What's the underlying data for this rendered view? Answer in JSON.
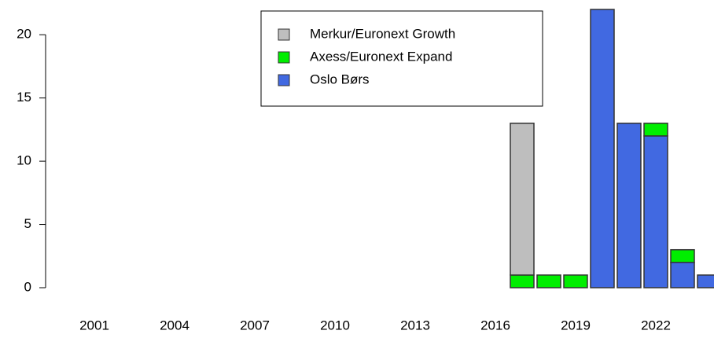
{
  "chart_data": {
    "type": "stacked-bar",
    "categories": [
      "2001",
      null,
      null,
      "2004",
      null,
      null,
      "2007",
      null,
      null,
      "2010",
      null,
      null,
      "2013",
      null,
      null,
      "2016",
      null,
      null,
      "2019",
      null,
      null,
      "2022",
      null,
      null
    ],
    "series": [
      {
        "name": "Merkur/Euronext Growth",
        "color": "#bebebe",
        "values": [
          0,
          0,
          0,
          0,
          0,
          0,
          0,
          0,
          0,
          0,
          0,
          0,
          0,
          0,
          0,
          0,
          12,
          0,
          0,
          0,
          0,
          0,
          0,
          0
        ]
      },
      {
        "name": "Axess/Euronext Expand",
        "color": "#00ee00",
        "values": [
          0,
          0,
          0,
          0,
          0,
          0,
          0,
          0,
          0,
          0,
          0,
          0,
          0,
          0,
          0,
          0,
          1,
          1,
          1,
          0,
          0,
          1,
          1,
          0
        ]
      },
      {
        "name": "Oslo Børs",
        "color": "#4169e1",
        "values": [
          0,
          0,
          0,
          0,
          0,
          0,
          0,
          0,
          0,
          0,
          0,
          0,
          0,
          0,
          0,
          0,
          0,
          0,
          0,
          22,
          13,
          12,
          2,
          1
        ]
      }
    ],
    "ylim": [
      0,
      22
    ],
    "yticks": [
      0,
      5,
      10,
      15,
      20
    ],
    "legend": "top-center"
  }
}
